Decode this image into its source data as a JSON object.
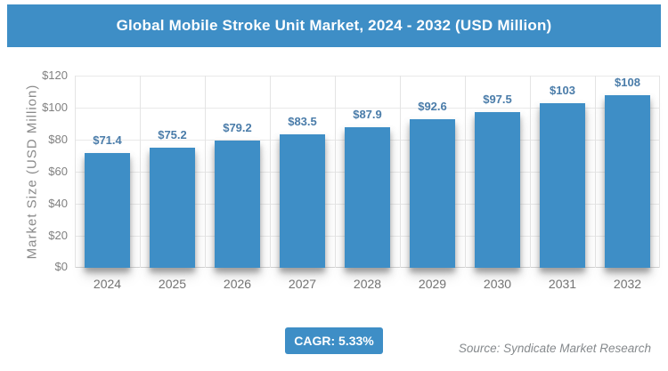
{
  "header": {
    "title": "Global Mobile Stroke Unit Market, 2024 - 2032 (USD Million)"
  },
  "chart_data": {
    "type": "bar",
    "title": "Global Mobile Stroke Unit Market, 2024 - 2032 (USD Million)",
    "categories": [
      "2024",
      "2025",
      "2026",
      "2027",
      "2028",
      "2029",
      "2030",
      "2031",
      "2032"
    ],
    "values": [
      71.4,
      75.2,
      79.2,
      83.5,
      87.9,
      92.6,
      97.5,
      103,
      108
    ],
    "labels": [
      "$71.4",
      "$75.2",
      "$79.2",
      "$83.5",
      "$87.9",
      "$92.6",
      "$97.5",
      "$103",
      "$108"
    ],
    "xlabel": "",
    "ylabel": "Market Size (USD Million)",
    "ylim": [
      0,
      120
    ],
    "ytick_step": 20,
    "yticks": [
      "$0",
      "$20",
      "$40",
      "$60",
      "$80",
      "$100",
      "$120"
    ],
    "grid": true,
    "legend_position": "none",
    "bar_color": "#3E8EC6",
    "value_label_color": "#4A7CA9"
  },
  "footer": {
    "cagr_label": "CAGR: 5.33%",
    "source": "Source: Syndicate Market Research"
  },
  "colors": {
    "banner": "#3E8EC6",
    "grid": "#E9E9E9",
    "axis_text": "#808080"
  }
}
